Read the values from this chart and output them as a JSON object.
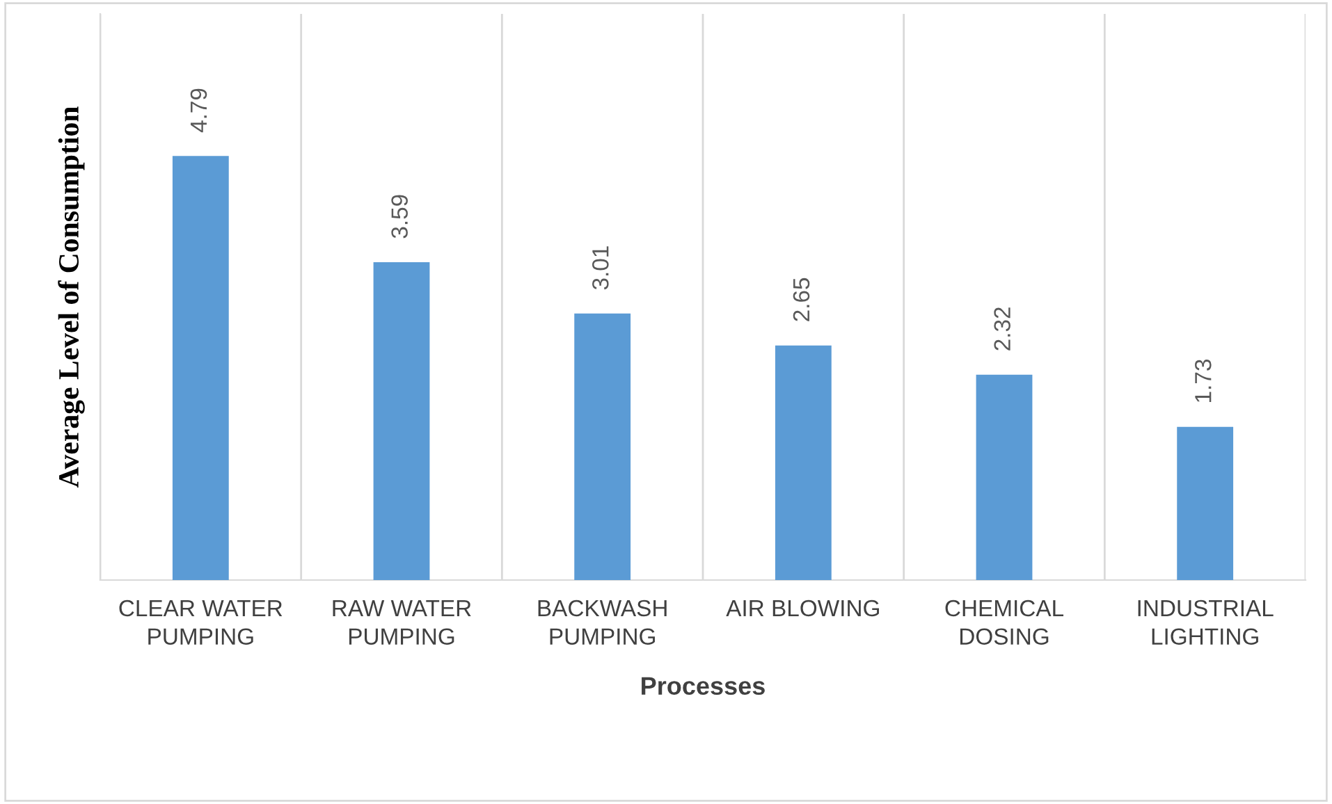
{
  "chart_data": {
    "type": "bar",
    "categories": [
      "CLEAR WATER PUMPING",
      "RAW WATER PUMPING",
      "BACKWASH PUMPING",
      "AIR BLOWING",
      "CHEMICAL DOSING",
      "INDUSTRIAL LIGHTING"
    ],
    "values": [
      4.79,
      3.59,
      3.01,
      2.65,
      2.32,
      1.73
    ],
    "color": "#5b9bd5",
    "xlabel": "Processes",
    "ylabel": "Average Level of Consumption",
    "data_labels": true,
    "grid": "x"
  }
}
